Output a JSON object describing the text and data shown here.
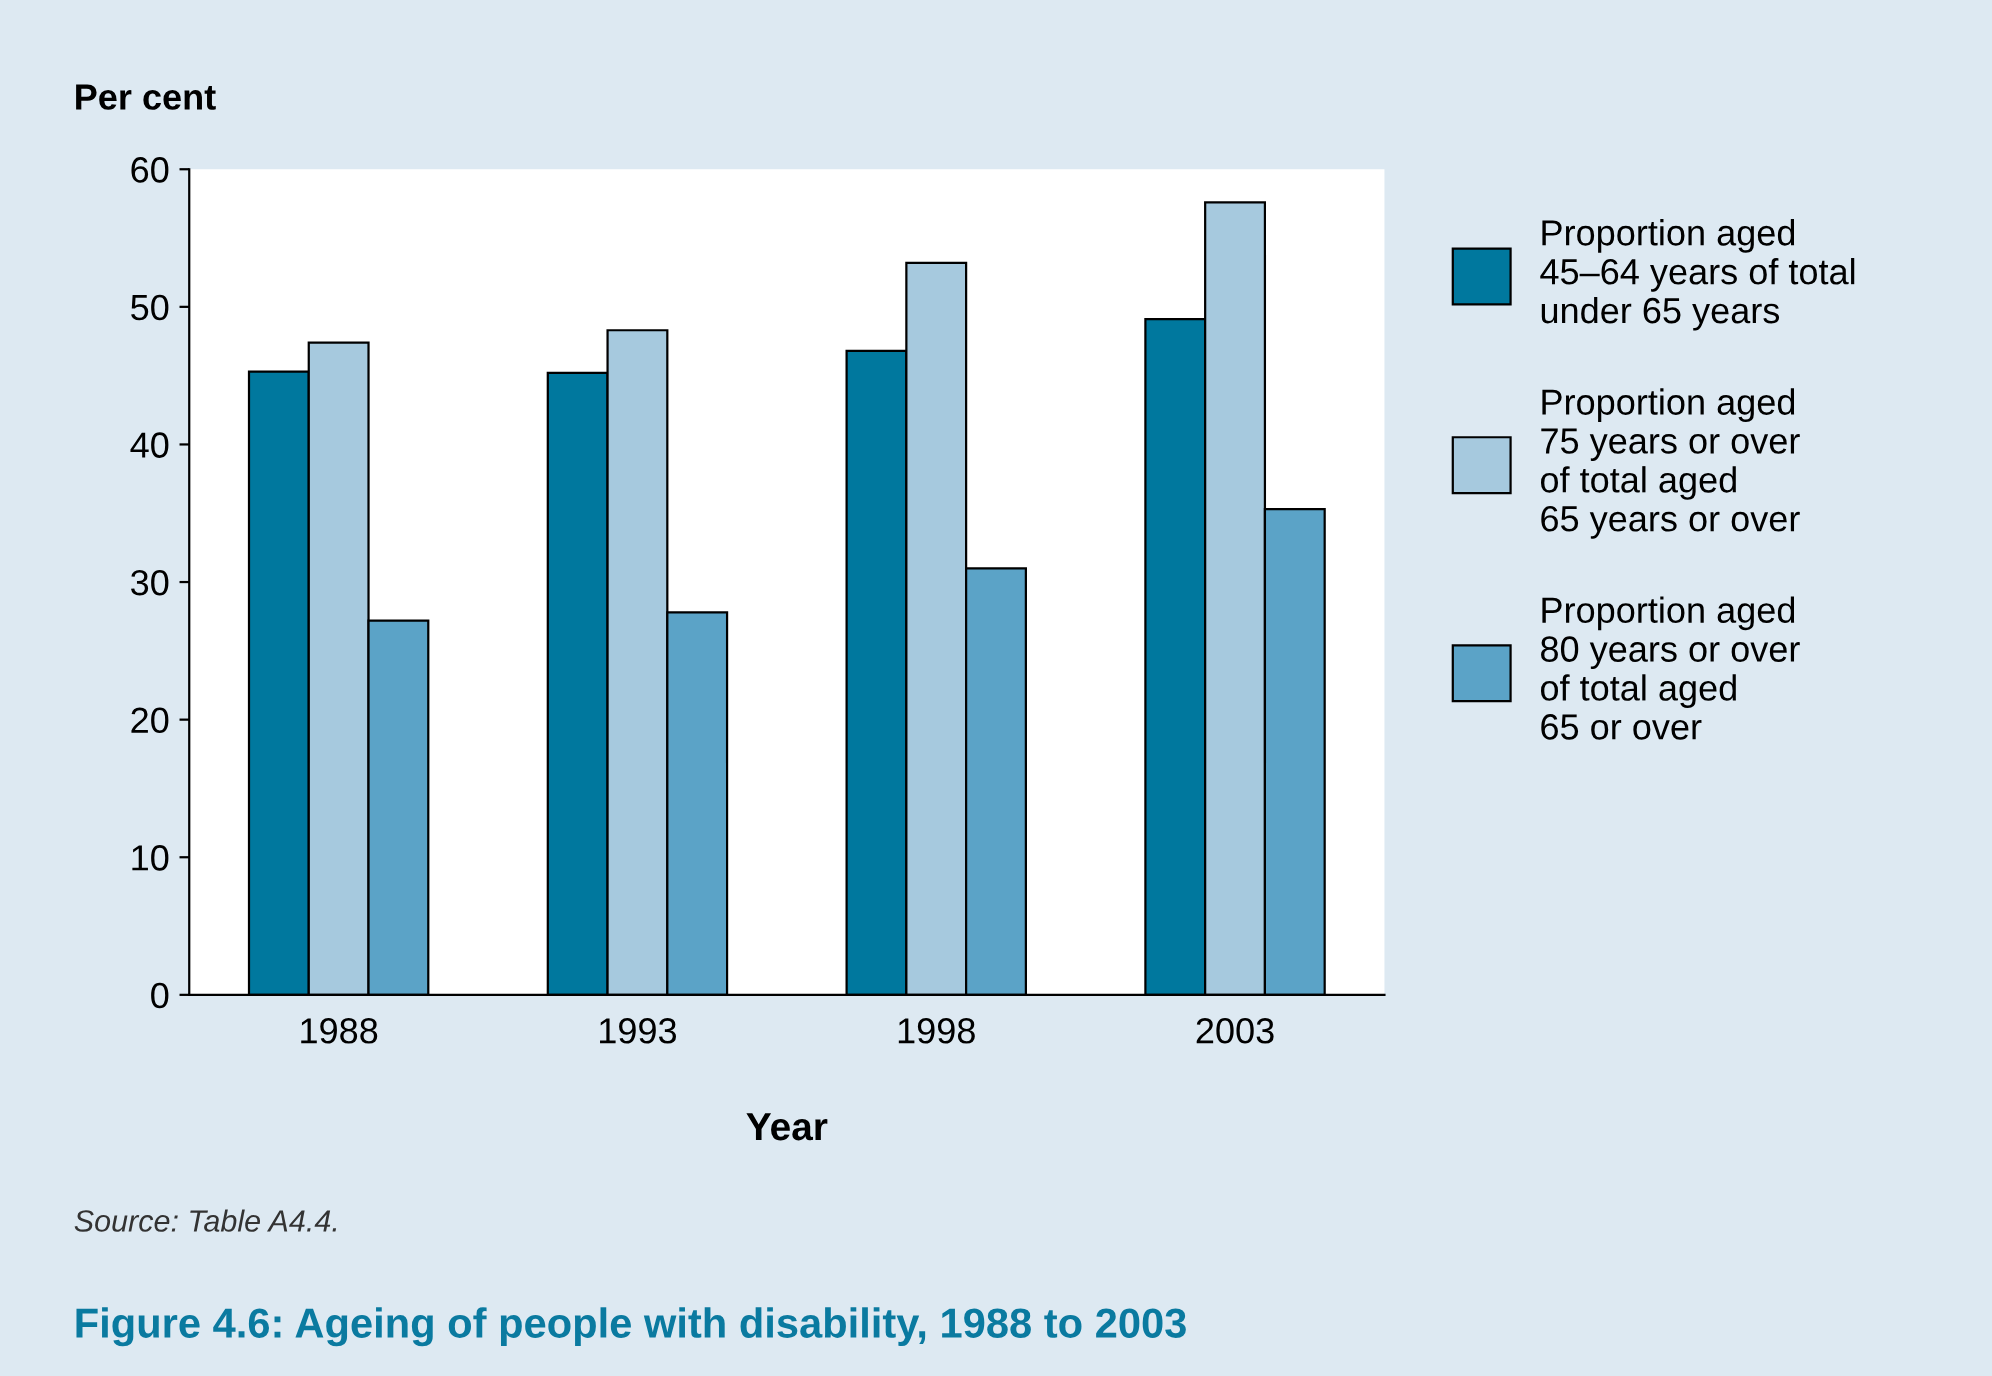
{
  "chart_data": {
    "type": "bar",
    "title": "Figure 4.6: Ageing of people with disability, 1988 to 2003",
    "xlabel": "Year",
    "ylabel": "Per cent",
    "categories": [
      "1988",
      "1993",
      "1998",
      "2003"
    ],
    "series": [
      {
        "name": "Proportion aged\n45–64 years of total\nunder 65 years",
        "color": "#00789e",
        "values": [
          45.3,
          45.2,
          46.8,
          49.1
        ]
      },
      {
        "name": "Proportion aged\n75 years or over\nof total aged\n65 years or over",
        "color": "#a6c9de",
        "values": [
          47.4,
          48.3,
          53.2,
          57.6
        ]
      },
      {
        "name": "Proportion aged\n80 years or over\nof total aged\n65 or over",
        "color": "#5ba3c7",
        "values": [
          27.2,
          27.8,
          31.0,
          35.3
        ]
      }
    ],
    "ylim": [
      0,
      60
    ],
    "yticks": [
      0,
      10,
      20,
      30,
      40,
      50,
      60
    ],
    "grid": false,
    "legend": "right",
    "annotations": [
      "Source: Table A4.4."
    ]
  }
}
